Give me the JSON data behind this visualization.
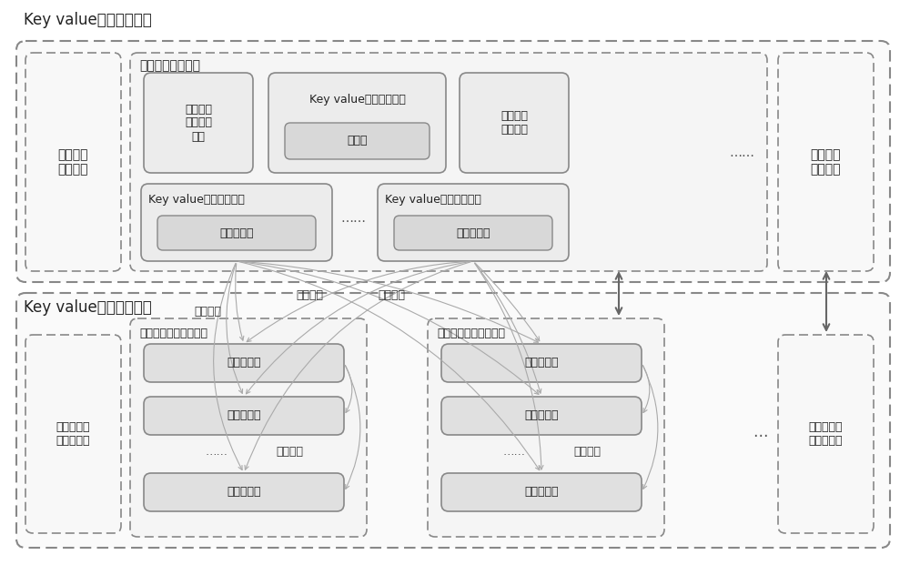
{
  "bg_color": "#ffffff",
  "font_size_title": 12,
  "font_size_label": 9,
  "font_size_small": 8.5,
  "top_cluster_label": "Key value访问代理集群",
  "bottom_cluster_label": "Key value数据存储集群",
  "top_left_box_label": "数据访问\n代理节点",
  "top_right_box_label": "数据访问\n代理节点",
  "proxy_node_label": "数据访问代理节点",
  "module1_label": "存储节点\n健康检测\n模块",
  "module2_label": "Key value数据存取模块",
  "module2_inner": "连接池",
  "module3_label": "存储分组\n配置模块",
  "kv_group_label": "Key value存储分组模块",
  "kv_inner_label": "一致性哈希",
  "bottom_left_box_label": "数据存储分\n片复制集群",
  "bottom_right_box_label": "数据存储分\n片复制集群",
  "storage_cluster1_label": "数据存储分片复制集群",
  "storage_cluster2_label": "数据存储分片复制集群",
  "master_label": "主存储节点",
  "slave_label": "从存储节点",
  "dots": "……",
  "realtime_label": "实时复制",
  "data_write_label": "数据写入",
  "data_read_label": "数据读取",
  "edge_color_dash": "#888888",
  "edge_color_solid": "#666666",
  "fill_outer": "#ffffff",
  "fill_inner1": "#f0f0f0",
  "fill_module": "#e8e8e8",
  "fill_inner_box": "#e0e0e0",
  "arrow_color": "#888888",
  "text_color": "#222222"
}
